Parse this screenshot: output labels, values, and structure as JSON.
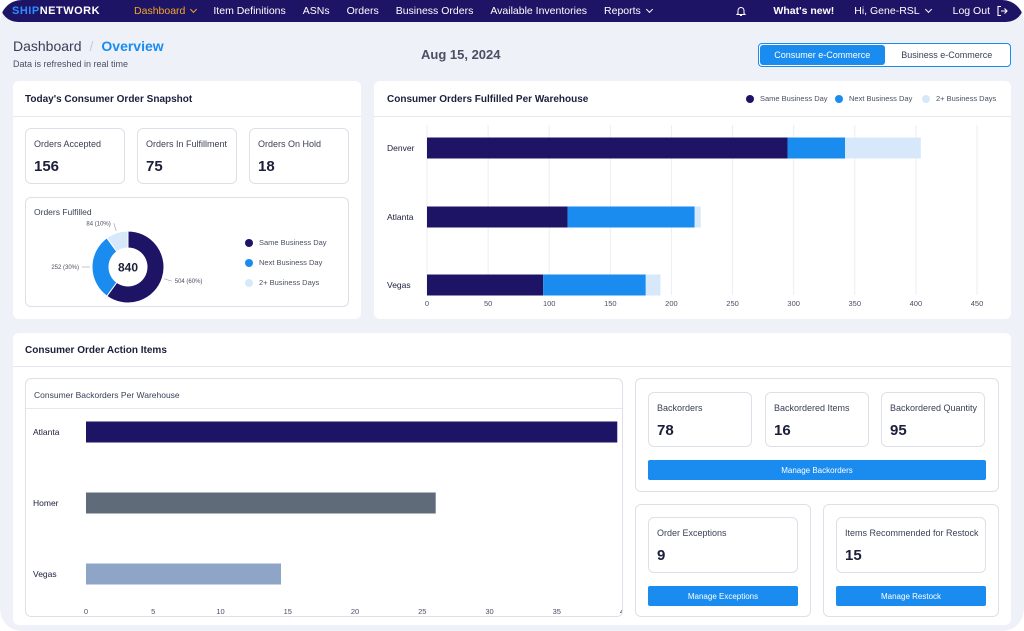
{
  "nav": {
    "logo_a": "SHIP",
    "logo_b": "NETWORK",
    "items": [
      "Dashboard",
      "Item Definitions",
      "ASNs",
      "Orders",
      "Business Orders",
      "Available Inventories",
      "Reports"
    ],
    "whats_new": "What's new!",
    "user": "Hi, Gene-RSL",
    "logout": "Log Out"
  },
  "header": {
    "crumb_root": "Dashboard",
    "crumb_sep": "/",
    "crumb_current": "Overview",
    "refresh_note": "Data is refreshed in real time",
    "date": "Aug 15, 2024",
    "toggle": [
      "Consumer e-Commerce",
      "Business e-Commerce"
    ]
  },
  "snapshot": {
    "title": "Today's Consumer Order Snapshot",
    "stats": [
      {
        "label": "Orders Accepted",
        "value": "156"
      },
      {
        "label": "Orders In Fulfillment",
        "value": "75"
      },
      {
        "label": "Orders On Hold",
        "value": "18"
      }
    ],
    "fulfilled": {
      "title": "Orders Fulfilled",
      "total": "840",
      "slice_labels": [
        "504 (60%)",
        "252 (30%)",
        "84 (10%)"
      ],
      "legend": [
        "Same Business Day",
        "Next Business Day",
        "2+ Business Days"
      ]
    }
  },
  "warehouse_chart": {
    "title": "Consumer Orders Fulfilled Per Warehouse",
    "legend": [
      "Same Business Day",
      "Next Business Day",
      "2+ Business Days"
    ]
  },
  "action": {
    "title": "Consumer Order Action Items",
    "backorders_chart_title": "Consumer Backorders Per Warehouse",
    "backorder_stats": [
      {
        "label": "Backorders",
        "value": "78"
      },
      {
        "label": "Backordered Items",
        "value": "16"
      },
      {
        "label": "Backordered Quantity",
        "value": "95"
      }
    ],
    "manage_backorders": "Manage Backorders",
    "exceptions": {
      "label": "Order Exceptions",
      "value": "9",
      "button": "Manage Exceptions"
    },
    "restock": {
      "label": "Items Recommended for Restock",
      "value": "15",
      "button": "Manage Restock"
    }
  },
  "colors": {
    "navy": "#1e1466",
    "blue": "#1a8cf0",
    "light": "#d6e8fa",
    "orange": "#f5a623",
    "slate": "#5f6b78",
    "steel": "#8ea5c8"
  },
  "chart_data": [
    {
      "type": "pie",
      "title": "Orders Fulfilled",
      "labels": [
        "Same Business Day",
        "Next Business Day",
        "2+ Business Days"
      ],
      "values": [
        504,
        252,
        84
      ],
      "center_label": "840"
    },
    {
      "type": "bar",
      "orientation": "horizontal",
      "stacked": true,
      "title": "Consumer Orders Fulfilled Per Warehouse",
      "categories": [
        "Denver",
        "Atlanta",
        "Vegas"
      ],
      "series": [
        {
          "name": "Same Business Day",
          "values": [
            295,
            115,
            95
          ]
        },
        {
          "name": "Next Business Day",
          "values": [
            47,
            104,
            84
          ]
        },
        {
          "name": "2+ Business Days",
          "values": [
            62,
            5,
            12
          ]
        }
      ],
      "xticks": [
        0,
        50,
        100,
        150,
        200,
        250,
        300,
        350,
        400,
        450
      ],
      "xlim": [
        0,
        450
      ],
      "legend": "top-right"
    },
    {
      "type": "bar",
      "orientation": "horizontal",
      "title": "Consumer Backorders Per Warehouse",
      "categories": [
        "Atlanta",
        "Homer",
        "Vegas"
      ],
      "values": [
        39.5,
        26,
        14.5
      ],
      "xticks": [
        0,
        5,
        10,
        15,
        20,
        25,
        30,
        35,
        40
      ],
      "xlim": [
        0,
        40
      ]
    }
  ]
}
